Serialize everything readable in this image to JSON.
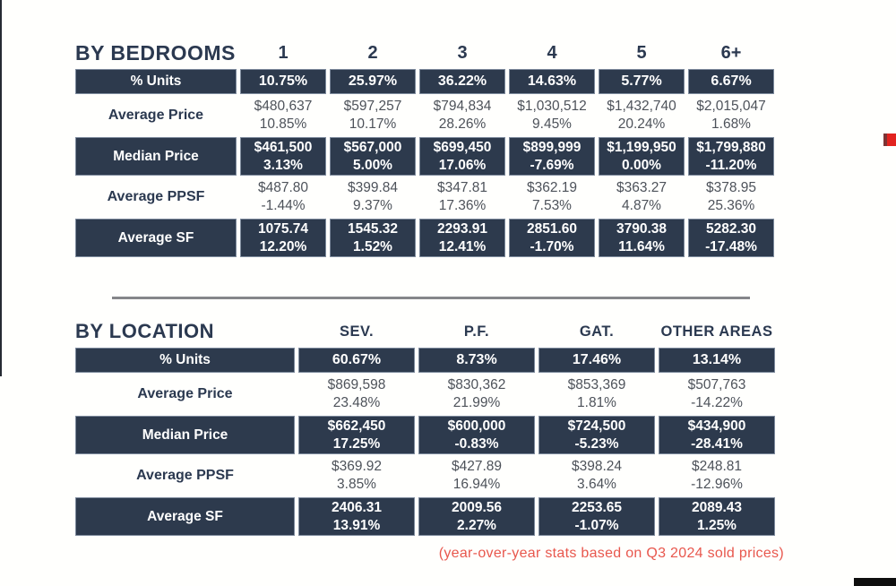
{
  "theme": {
    "navy": "#2d3a4d",
    "navy_text": "#2b3950",
    "body_text": "#4d525a",
    "footnote_red": "#e8574d",
    "accent_red": "#e2231f",
    "divider_gray": "#85868a",
    "background": "#fffffd"
  },
  "bedrooms_table": {
    "title": "BY BEDROOMS",
    "columns": [
      "1",
      "2",
      "3",
      "4",
      "5",
      "6+"
    ],
    "rows": [
      {
        "label": "% Units",
        "style": "dark",
        "cells": [
          {
            "value": "10.75%"
          },
          {
            "value": "25.97%"
          },
          {
            "value": "36.22%"
          },
          {
            "value": "14.63%"
          },
          {
            "value": "5.77%"
          },
          {
            "value": "6.67%"
          }
        ]
      },
      {
        "label": "Average Price",
        "style": "light",
        "cells": [
          {
            "value": "$480,637",
            "yoy": "10.85%"
          },
          {
            "value": "$597,257",
            "yoy": "10.17%"
          },
          {
            "value": "$794,834",
            "yoy": "28.26%"
          },
          {
            "value": "$1,030,512",
            "yoy": "9.45%"
          },
          {
            "value": "$1,432,740",
            "yoy": "20.24%"
          },
          {
            "value": "$2,015,047",
            "yoy": "1.68%"
          }
        ]
      },
      {
        "label": "Median Price",
        "style": "dark",
        "cells": [
          {
            "value": "$461,500",
            "yoy": "3.13%"
          },
          {
            "value": "$567,000",
            "yoy": "5.00%"
          },
          {
            "value": "$699,450",
            "yoy": "17.06%"
          },
          {
            "value": "$899,999",
            "yoy": "-7.69%"
          },
          {
            "value": "$1,199,950",
            "yoy": "0.00%"
          },
          {
            "value": "$1,799,880",
            "yoy": "-11.20%"
          }
        ]
      },
      {
        "label": "Average PPSF",
        "style": "light",
        "cells": [
          {
            "value": "$487.80",
            "yoy": "-1.44%"
          },
          {
            "value": "$399.84",
            "yoy": "9.37%"
          },
          {
            "value": "$347.81",
            "yoy": "17.36%"
          },
          {
            "value": "$362.19",
            "yoy": "7.53%"
          },
          {
            "value": "$363.27",
            "yoy": "4.87%"
          },
          {
            "value": "$378.95",
            "yoy": "25.36%"
          }
        ]
      },
      {
        "label": "Average SF",
        "style": "dark",
        "cells": [
          {
            "value": "1075.74",
            "yoy": "12.20%"
          },
          {
            "value": "1545.32",
            "yoy": "1.52%"
          },
          {
            "value": "2293.91",
            "yoy": "12.41%"
          },
          {
            "value": "2851.60",
            "yoy": "-1.70%"
          },
          {
            "value": "3790.38",
            "yoy": "11.64%"
          },
          {
            "value": "5282.30",
            "yoy": "-17.48%"
          }
        ]
      }
    ]
  },
  "location_table": {
    "title": "BY LOCATION",
    "columns": [
      "SEV.",
      "P.F.",
      "GAT.",
      "OTHER AREAS"
    ],
    "rows": [
      {
        "label": "% Units",
        "style": "dark",
        "cells": [
          {
            "value": "60.67%"
          },
          {
            "value": "8.73%"
          },
          {
            "value": "17.46%"
          },
          {
            "value": "13.14%"
          }
        ]
      },
      {
        "label": "Average Price",
        "style": "light",
        "cells": [
          {
            "value": "$869,598",
            "yoy": "23.48%"
          },
          {
            "value": "$830,362",
            "yoy": "21.99%"
          },
          {
            "value": "$853,369",
            "yoy": "1.81%"
          },
          {
            "value": "$507,763",
            "yoy": "-14.22%"
          }
        ]
      },
      {
        "label": "Median Price",
        "style": "dark",
        "cells": [
          {
            "value": "$662,450",
            "yoy": "17.25%"
          },
          {
            "value": "$600,000",
            "yoy": "-0.83%"
          },
          {
            "value": "$724,500",
            "yoy": "-5.23%"
          },
          {
            "value": "$434,900",
            "yoy": "-28.41%"
          }
        ]
      },
      {
        "label": "Average PPSF",
        "style": "light",
        "cells": [
          {
            "value": "$369.92",
            "yoy": "3.85%"
          },
          {
            "value": "$427.89",
            "yoy": "16.94%"
          },
          {
            "value": "$398.24",
            "yoy": "3.64%"
          },
          {
            "value": "$248.81",
            "yoy": "-12.96%"
          }
        ]
      },
      {
        "label": "Average SF",
        "style": "dark",
        "cells": [
          {
            "value": "2406.31",
            "yoy": "13.91%"
          },
          {
            "value": "2009.56",
            "yoy": "2.27%"
          },
          {
            "value": "2253.65",
            "yoy": "-1.07%"
          },
          {
            "value": "2089.43",
            "yoy": "1.25%"
          }
        ]
      }
    ]
  },
  "footnote": "(year-over-year stats based on Q3 2024 sold prices)",
  "chart_data": [
    {
      "type": "table",
      "title": "BY BEDROOMS",
      "columns": [
        "1",
        "2",
        "3",
        "4",
        "5",
        "6+"
      ],
      "rows": [
        {
          "label": "% Units",
          "values": [
            "10.75%",
            "25.97%",
            "36.22%",
            "14.63%",
            "5.77%",
            "6.67%"
          ]
        },
        {
          "label": "Average Price",
          "values": [
            [
              "$480,637",
              "10.85%"
            ],
            [
              "$597,257",
              "10.17%"
            ],
            [
              "$794,834",
              "28.26%"
            ],
            [
              "$1,030,512",
              "9.45%"
            ],
            [
              "$1,432,740",
              "20.24%"
            ],
            [
              "$2,015,047",
              "1.68%"
            ]
          ]
        },
        {
          "label": "Median Price",
          "values": [
            [
              "$461,500",
              "3.13%"
            ],
            [
              "$567,000",
              "5.00%"
            ],
            [
              "$699,450",
              "17.06%"
            ],
            [
              "$899,999",
              "-7.69%"
            ],
            [
              "$1,199,950",
              "0.00%"
            ],
            [
              "$1,799,880",
              "-11.20%"
            ]
          ]
        },
        {
          "label": "Average PPSF",
          "values": [
            [
              "$487.80",
              "-1.44%"
            ],
            [
              "$399.84",
              "9.37%"
            ],
            [
              "$347.81",
              "17.36%"
            ],
            [
              "$362.19",
              "7.53%"
            ],
            [
              "$363.27",
              "4.87%"
            ],
            [
              "$378.95",
              "25.36%"
            ]
          ]
        },
        {
          "label": "Average SF",
          "values": [
            [
              "1075.74",
              "12.20%"
            ],
            [
              "1545.32",
              "1.52%"
            ],
            [
              "2293.91",
              "12.41%"
            ],
            [
              "2851.60",
              "-1.70%"
            ],
            [
              "3790.38",
              "11.64%"
            ],
            [
              "5282.30",
              "-17.48%"
            ]
          ]
        }
      ],
      "note": "second value of each pair is year-over-year change"
    },
    {
      "type": "table",
      "title": "BY LOCATION",
      "columns": [
        "SEV.",
        "P.F.",
        "GAT.",
        "OTHER AREAS"
      ],
      "rows": [
        {
          "label": "% Units",
          "values": [
            "60.67%",
            "8.73%",
            "17.46%",
            "13.14%"
          ]
        },
        {
          "label": "Average Price",
          "values": [
            [
              "$869,598",
              "23.48%"
            ],
            [
              "$830,362",
              "21.99%"
            ],
            [
              "$853,369",
              "1.81%"
            ],
            [
              "$507,763",
              "-14.22%"
            ]
          ]
        },
        {
          "label": "Median Price",
          "values": [
            [
              "$662,450",
              "17.25%"
            ],
            [
              "$600,000",
              "-0.83%"
            ],
            [
              "$724,500",
              "-5.23%"
            ],
            [
              "$434,900",
              "-28.41%"
            ]
          ]
        },
        {
          "label": "Average PPSF",
          "values": [
            [
              "$369.92",
              "3.85%"
            ],
            [
              "$427.89",
              "16.94%"
            ],
            [
              "$398.24",
              "3.64%"
            ],
            [
              "$248.81",
              "-12.96%"
            ]
          ]
        },
        {
          "label": "Average SF",
          "values": [
            [
              "2406.31",
              "13.91%"
            ],
            [
              "2009.56",
              "2.27%"
            ],
            [
              "2253.65",
              "-1.07%"
            ],
            [
              "2089.43",
              "1.25%"
            ]
          ]
        }
      ],
      "note": "second value of each pair is year-over-year change"
    }
  ]
}
